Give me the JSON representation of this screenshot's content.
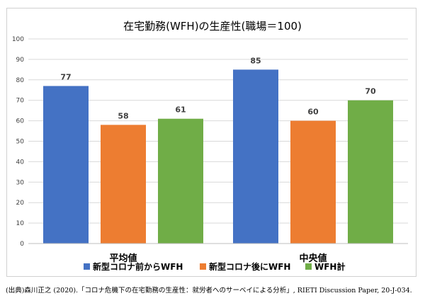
{
  "chart_data": {
    "type": "bar",
    "title": "在宅勤務(WFH)の生産性(職場＝100)",
    "categories": [
      "平均値",
      "中央値"
    ],
    "series": [
      {
        "name": "新型コロナ前からWFH",
        "color": "#4472C4",
        "values": [
          77,
          85
        ]
      },
      {
        "name": "新型コロナ後にWFH",
        "color": "#ED7D31",
        "values": [
          58,
          60
        ]
      },
      {
        "name": "WFH計",
        "color": "#70AD47",
        "values": [
          61,
          70
        ]
      }
    ],
    "data_labels": [
      [
        "77",
        "58",
        "61"
      ],
      [
        "85",
        "60",
        "70"
      ]
    ],
    "ylim": [
      0,
      100
    ],
    "yticks": [
      0,
      10,
      20,
      30,
      40,
      50,
      60,
      70,
      80,
      90,
      100
    ],
    "grid": true,
    "legend_position": "bottom"
  },
  "source": "(出典)森川正之 (2020).「コロナ危機下の在宅勤務の生産性：就労者へのサーベイによる分析」, RIETI Discussion Paper, 20-J-034."
}
